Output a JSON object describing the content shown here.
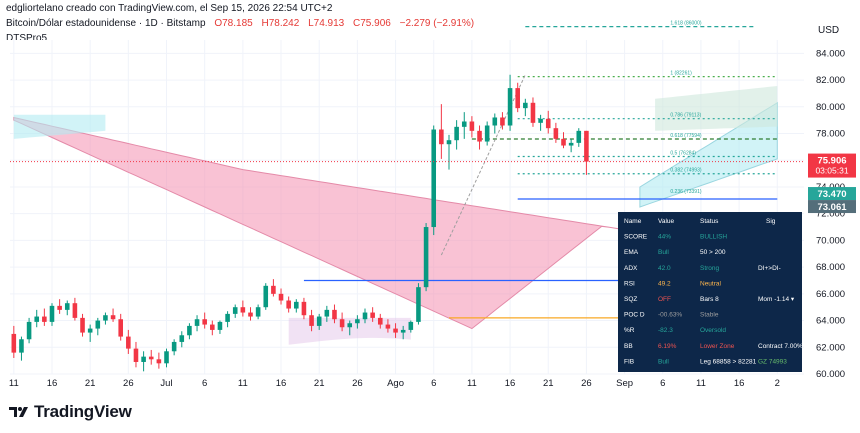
{
  "header": {
    "attribution": "edgliortelano creado con TradingView.com, el Sep 15, 2026 22:54 UTC+2",
    "symbol": "Bitcoin/Dólar estadounidense · 1D · Bitstamp",
    "ohlc": {
      "o": "O78.185",
      "h": "H78.242",
      "l": "L74.913",
      "c": "C75.906",
      "chg": "−2.279 (−2.91%)"
    },
    "indicator": "DTSPro5",
    "currency": "USD"
  },
  "colors": {
    "up": "#089981",
    "down": "#f23645",
    "cloud_bear": "#f48fb1",
    "cloud_bull": "#b2ebf2",
    "accent_blue": "#2962ff",
    "table_bg": "#0d2749",
    "grid": "#f0f3fa"
  },
  "price_badges": {
    "last": {
      "value": "75.906",
      "countdown": "03:05:31"
    },
    "level_a": "73.470",
    "level_b": "73.061"
  },
  "fib_labels": [
    "1.618 (86000)",
    "1 (82261)",
    "0.786 (79113)",
    "0.618 (77594)",
    "0.5 (76284)",
    "0.382 (74993)",
    "0.236 (73391)"
  ],
  "chart_data": {
    "type": "candlestick",
    "y_ticks": [
      "84.000",
      "82.000",
      "80.000",
      "78.000",
      "76.000",
      "74.000",
      "72.000",
      "70.000",
      "68.000",
      "66.000",
      "64.000",
      "62.000",
      "60.000"
    ],
    "ylim": [
      60,
      85
    ],
    "x_ticks": [
      "11",
      "16",
      "21",
      "26",
      "Jul",
      "6",
      "11",
      "16",
      "21",
      "26",
      "Ago",
      "6",
      "11",
      "16",
      "21",
      "26",
      "Sep",
      "6",
      "11",
      "16",
      "2"
    ],
    "ohlc": [
      [
        63.0,
        63.6,
        61.2,
        61.6
      ],
      [
        61.6,
        62.8,
        61.0,
        62.6
      ],
      [
        62.6,
        64.2,
        62.3,
        63.9
      ],
      [
        63.9,
        64.8,
        63.5,
        64.3
      ],
      [
        64.3,
        64.9,
        63.6,
        63.9
      ],
      [
        63.9,
        65.3,
        63.6,
        65.1
      ],
      [
        65.1,
        65.6,
        64.5,
        64.8
      ],
      [
        64.8,
        65.5,
        64.4,
        65.3
      ],
      [
        65.3,
        65.7,
        64.0,
        64.2
      ],
      [
        64.2,
        64.5,
        62.8,
        63.1
      ],
      [
        63.1,
        63.7,
        62.4,
        63.4
      ],
      [
        63.4,
        64.2,
        62.9,
        64.0
      ],
      [
        64.0,
        64.6,
        63.7,
        64.4
      ],
      [
        64.4,
        64.9,
        63.9,
        64.1
      ],
      [
        64.1,
        64.5,
        62.5,
        62.8
      ],
      [
        62.8,
        63.3,
        61.5,
        61.9
      ],
      [
        61.9,
        62.4,
        60.5,
        60.9
      ],
      [
        60.9,
        61.7,
        60.2,
        61.3
      ],
      [
        61.3,
        61.8,
        60.7,
        61.1
      ],
      [
        61.1,
        61.6,
        60.4,
        60.8
      ],
      [
        60.8,
        61.9,
        60.5,
        61.7
      ],
      [
        61.7,
        62.6,
        61.4,
        62.4
      ],
      [
        62.4,
        63.2,
        62.0,
        62.9
      ],
      [
        62.9,
        63.8,
        62.6,
        63.6
      ],
      [
        63.6,
        64.4,
        63.2,
        64.1
      ],
      [
        64.1,
        64.6,
        63.4,
        63.7
      ],
      [
        63.7,
        64.0,
        62.9,
        63.3
      ],
      [
        63.3,
        64.0,
        63.0,
        63.9
      ],
      [
        63.9,
        64.7,
        63.5,
        64.5
      ],
      [
        64.5,
        65.2,
        64.2,
        65.0
      ],
      [
        65.0,
        65.5,
        64.3,
        64.6
      ],
      [
        64.6,
        65.0,
        64.0,
        64.3
      ],
      [
        64.3,
        65.2,
        64.1,
        65.0
      ],
      [
        65.0,
        66.8,
        64.8,
        66.6
      ],
      [
        66.6,
        67.1,
        65.8,
        66.0
      ],
      [
        66.0,
        66.4,
        65.2,
        65.5
      ],
      [
        65.5,
        65.8,
        64.6,
        64.9
      ],
      [
        64.9,
        65.6,
        64.6,
        65.4
      ],
      [
        65.4,
        65.7,
        64.1,
        64.4
      ],
      [
        64.4,
        64.8,
        63.2,
        63.6
      ],
      [
        63.6,
        64.5,
        63.3,
        64.3
      ],
      [
        64.3,
        65.1,
        63.9,
        64.8
      ],
      [
        64.8,
        65.2,
        63.8,
        64.1
      ],
      [
        64.1,
        64.6,
        63.2,
        63.5
      ],
      [
        63.5,
        64.0,
        62.9,
        63.8
      ],
      [
        63.8,
        64.4,
        63.4,
        64.1
      ],
      [
        64.1,
        64.9,
        63.8,
        64.6
      ],
      [
        64.6,
        65.0,
        63.9,
        64.2
      ],
      [
        64.2,
        64.5,
        63.4,
        63.7
      ],
      [
        63.7,
        64.1,
        63.1,
        63.4
      ],
      [
        63.4,
        63.8,
        62.7,
        63.1
      ],
      [
        63.1,
        63.6,
        62.6,
        63.3
      ],
      [
        63.3,
        64.0,
        63.1,
        63.9
      ],
      [
        63.9,
        66.8,
        63.7,
        66.5
      ],
      [
        66.5,
        71.3,
        66.2,
        71.0
      ],
      [
        71.0,
        78.6,
        70.4,
        78.3
      ],
      [
        78.3,
        80.2,
        76.1,
        77.2
      ],
      [
        77.2,
        77.9,
        75.3,
        77.5
      ],
      [
        77.5,
        79.0,
        76.8,
        78.5
      ],
      [
        78.5,
        79.6,
        77.6,
        78.9
      ],
      [
        78.9,
        79.3,
        77.7,
        78.2
      ],
      [
        78.2,
        78.6,
        76.8,
        77.4
      ],
      [
        77.4,
        78.9,
        77.1,
        78.6
      ],
      [
        78.6,
        79.5,
        78.0,
        79.2
      ],
      [
        79.2,
        79.6,
        78.3,
        78.6
      ],
      [
        78.6,
        82.4,
        78.2,
        81.4
      ],
      [
        81.4,
        81.8,
        79.6,
        79.9
      ],
      [
        79.9,
        80.6,
        79.3,
        80.3
      ],
      [
        80.3,
        80.7,
        78.5,
        78.8
      ],
      [
        78.8,
        79.4,
        78.2,
        79.1
      ],
      [
        79.1,
        79.7,
        78.0,
        78.4
      ],
      [
        78.4,
        78.8,
        77.3,
        77.6
      ],
      [
        77.6,
        78.1,
        76.9,
        77.1
      ],
      [
        77.1,
        77.6,
        76.6,
        77.3
      ],
      [
        77.3,
        78.4,
        77.0,
        78.2
      ],
      [
        78.2,
        78.2,
        74.9,
        75.9
      ]
    ],
    "x_index_ticks": [
      0,
      5,
      10,
      15,
      20,
      25,
      30,
      35,
      40,
      45,
      50,
      55,
      60,
      65,
      70,
      75,
      80,
      85,
      90,
      95,
      100
    ]
  },
  "signal_table": {
    "headers": [
      "Name",
      "Value",
      "Status",
      "Sig"
    ],
    "rows": [
      {
        "name": "SCORE",
        "value": "44%",
        "status": "BULLISH",
        "sig": ""
      },
      {
        "name": "EMA",
        "value": "Bull",
        "status": "50 > 200",
        "sig": ""
      },
      {
        "name": "ADX",
        "value": "42.0",
        "status": "Strong",
        "sig": "DI+>DI-"
      },
      {
        "name": "RSI",
        "value": "49.2",
        "status": "Neutral",
        "sig": ""
      },
      {
        "name": "SQZ",
        "value": "OFF",
        "status": "Bars 8",
        "sig": "Mom -1.14 ▾"
      },
      {
        "name": "POC D",
        "value": "-00.63%",
        "status": "Stable",
        "sig": ""
      },
      {
        "name": "%R",
        "value": "-82.3",
        "status": "Oversold",
        "sig": ""
      },
      {
        "name": "BB",
        "value": "6.19%",
        "status": "Lower Zone",
        "sig": "Contract 7.00%"
      },
      {
        "name": "FIB",
        "value": "Bull",
        "status": "Leg 68858 > 82281",
        "sig": "GZ 74993"
      }
    ]
  },
  "branding": "TradingView"
}
